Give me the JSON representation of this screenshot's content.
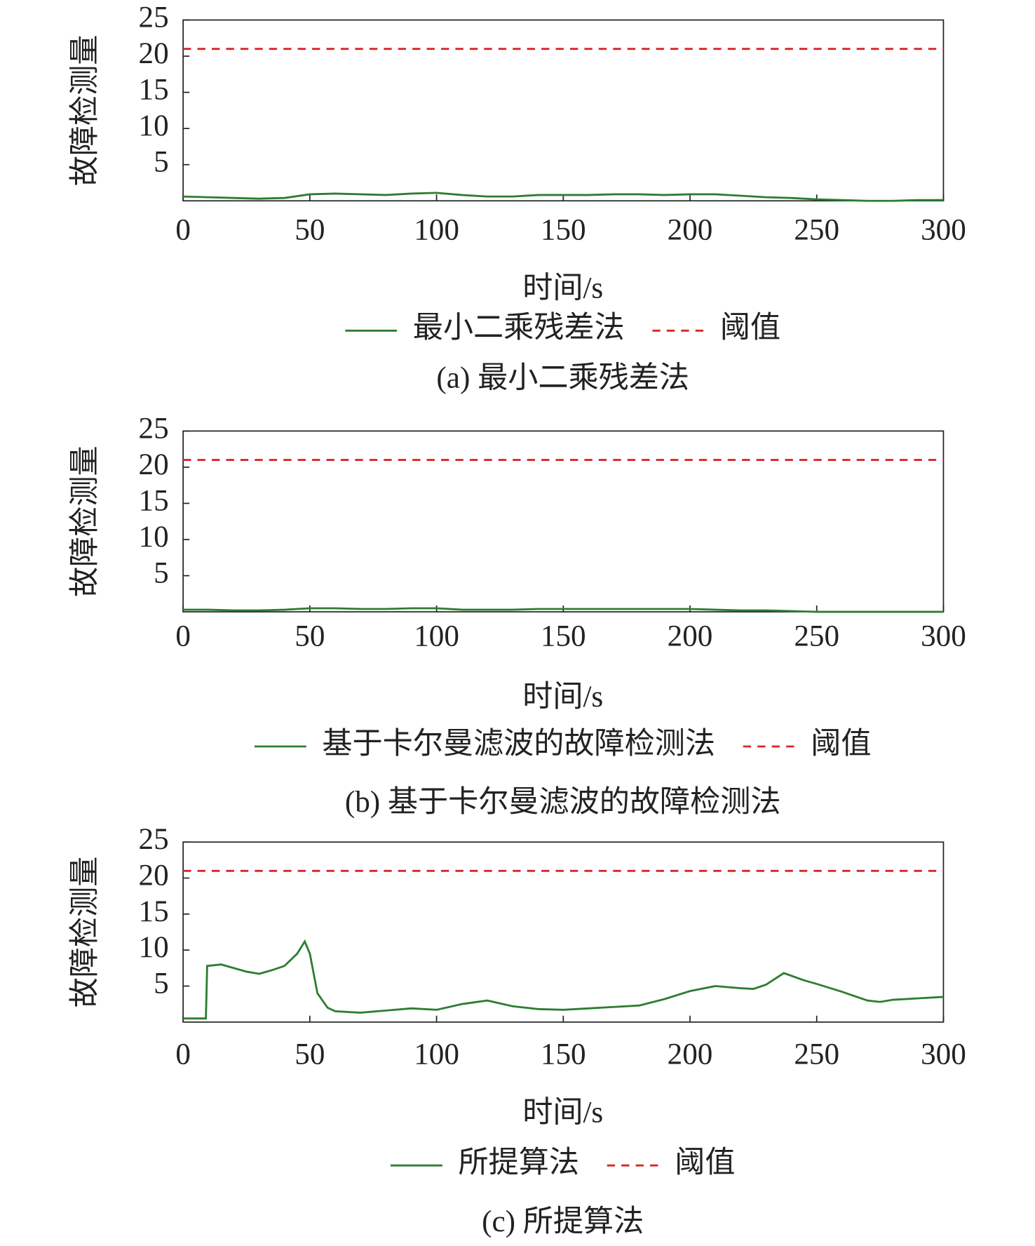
{
  "chart_data": [
    {
      "type": "line",
      "ylabel": "故障检测量",
      "xlabel": "时间/s",
      "caption": "(a) 最小二乘残差法",
      "xlim": [
        0,
        300
      ],
      "xticks": [
        0,
        50,
        100,
        150,
        200,
        250,
        300
      ],
      "ylim": [
        0,
        25
      ],
      "yticks": [
        5,
        10,
        15,
        20,
        25
      ],
      "series": [
        {
          "name": "最小二乘残差法",
          "color": "#2e7d32",
          "dashed": false,
          "x": [
            0,
            10,
            20,
            30,
            40,
            50,
            60,
            70,
            80,
            90,
            100,
            110,
            120,
            130,
            140,
            150,
            160,
            170,
            180,
            190,
            200,
            210,
            220,
            230,
            240,
            250,
            260,
            270,
            280,
            290,
            300
          ],
          "values": [
            0.6,
            0.5,
            0.4,
            0.3,
            0.4,
            0.9,
            1.0,
            0.9,
            0.8,
            1.0,
            1.1,
            0.8,
            0.6,
            0.6,
            0.8,
            0.8,
            0.8,
            0.9,
            0.9,
            0.8,
            0.9,
            0.9,
            0.7,
            0.5,
            0.4,
            0.2,
            0.1,
            0.0,
            0.0,
            0.1,
            0.1
          ]
        },
        {
          "name": "阈值",
          "color": "#d62728",
          "dashed": true,
          "x": [
            0,
            300
          ],
          "values": [
            21,
            21
          ]
        }
      ]
    },
    {
      "type": "line",
      "ylabel": "故障检测量",
      "xlabel": "时间/s",
      "caption": "(b) 基于卡尔曼滤波的故障检测法",
      "xlim": [
        0,
        300
      ],
      "xticks": [
        0,
        50,
        100,
        150,
        200,
        250,
        300
      ],
      "ylim": [
        0,
        25
      ],
      "yticks": [
        5,
        10,
        15,
        20,
        25
      ],
      "series": [
        {
          "name": "基于卡尔曼滤波的故障检测法",
          "color": "#2e7d32",
          "dashed": false,
          "x": [
            0,
            10,
            20,
            30,
            40,
            50,
            60,
            70,
            80,
            90,
            100,
            110,
            120,
            130,
            140,
            150,
            160,
            170,
            180,
            190,
            200,
            210,
            220,
            230,
            240,
            250,
            260,
            270,
            280,
            290,
            300
          ],
          "values": [
            0.3,
            0.3,
            0.2,
            0.2,
            0.3,
            0.5,
            0.5,
            0.4,
            0.4,
            0.5,
            0.5,
            0.3,
            0.3,
            0.3,
            0.4,
            0.4,
            0.4,
            0.4,
            0.4,
            0.4,
            0.4,
            0.3,
            0.2,
            0.2,
            0.1,
            0.0,
            0.0,
            0.0,
            0.0,
            0.0,
            0.0
          ]
        },
        {
          "name": "阈值",
          "color": "#d62728",
          "dashed": true,
          "x": [
            0,
            300
          ],
          "values": [
            21,
            21
          ]
        }
      ]
    },
    {
      "type": "line",
      "ylabel": "故障检测量",
      "xlabel": "时间/s",
      "caption": "(c) 所提算法",
      "xlim": [
        0,
        300
      ],
      "xticks": [
        0,
        50,
        100,
        150,
        200,
        250,
        300
      ],
      "ylim": [
        0,
        25
      ],
      "yticks": [
        5,
        10,
        15,
        20,
        25
      ],
      "series": [
        {
          "name": "所提算法",
          "color": "#2e7d32",
          "dashed": false,
          "x": [
            0,
            9,
            9.5,
            15,
            20,
            25,
            30,
            35,
            40,
            45,
            48,
            50,
            53,
            57,
            60,
            70,
            80,
            90,
            100,
            110,
            120,
            130,
            140,
            150,
            160,
            170,
            180,
            190,
            200,
            210,
            220,
            225,
            230,
            237,
            245,
            250,
            260,
            270,
            275,
            280,
            290,
            300
          ],
          "values": [
            0.5,
            0.5,
            7.8,
            8.0,
            7.5,
            7.0,
            6.7,
            7.2,
            7.8,
            9.5,
            11.2,
            9.5,
            4.0,
            2.0,
            1.5,
            1.3,
            1.6,
            1.9,
            1.7,
            2.5,
            3.0,
            2.2,
            1.8,
            1.7,
            1.9,
            2.1,
            2.3,
            3.2,
            4.3,
            5.0,
            4.7,
            4.6,
            5.2,
            6.8,
            5.8,
            5.3,
            4.2,
            3.0,
            2.8,
            3.1,
            3.3,
            3.5
          ]
        },
        {
          "name": "阈值",
          "color": "#d62728",
          "dashed": true,
          "x": [
            0,
            300
          ],
          "values": [
            21,
            21
          ]
        }
      ]
    }
  ]
}
